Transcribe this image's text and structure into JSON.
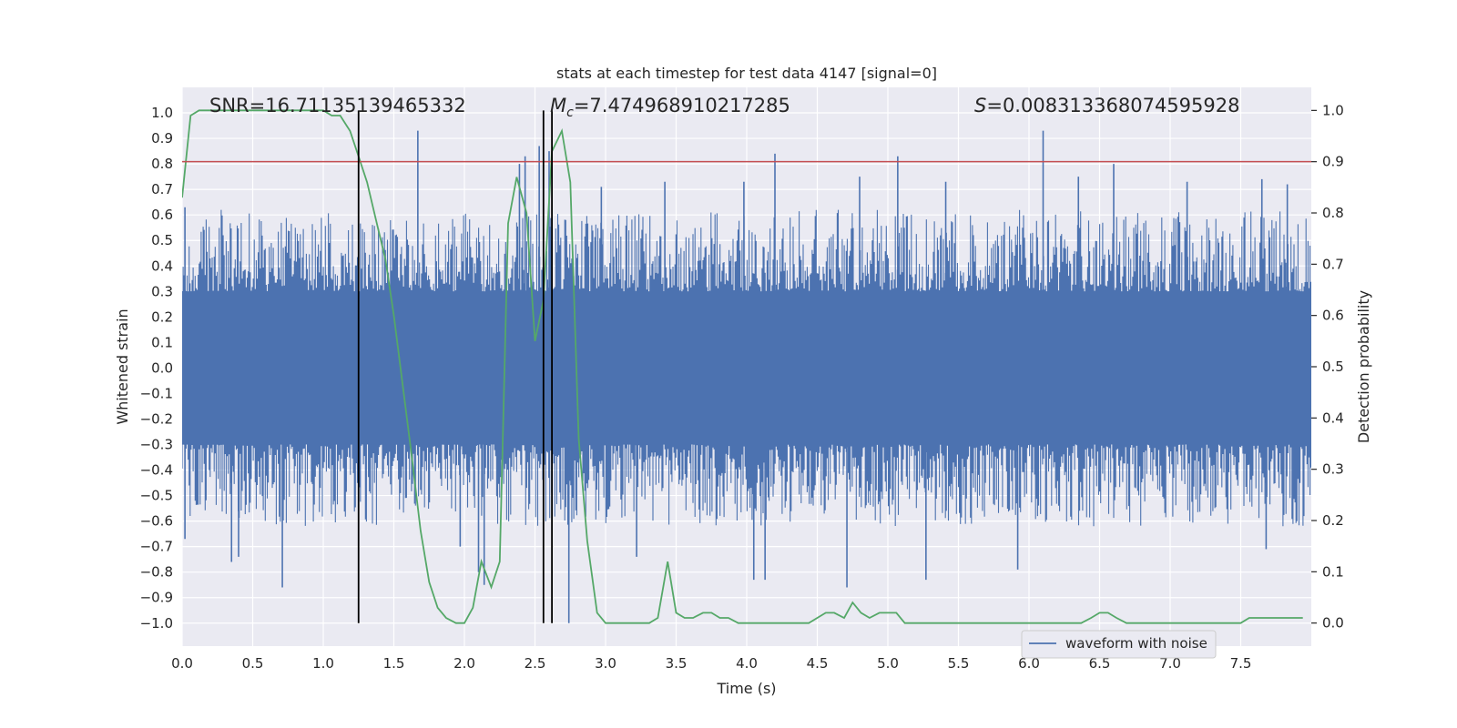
{
  "chart_data": {
    "type": "line",
    "title": "stats at each timestep for test data 4147 [signal=0]",
    "xlabel": "Time (s)",
    "ylabel": "Whitened strain",
    "y2label": "Detection probability",
    "xlim": [
      0.0,
      8.0
    ],
    "ylim": [
      -1.09,
      1.1
    ],
    "y2lim": [
      -0.045,
      1.045
    ],
    "xticks": [
      "0.0",
      "0.5",
      "1.0",
      "1.5",
      "2.0",
      "2.5",
      "3.0",
      "3.5",
      "4.0",
      "4.5",
      "5.0",
      "5.5",
      "6.0",
      "6.5",
      "7.0",
      "7.5"
    ],
    "xtick_values": [
      0.0,
      0.5,
      1.0,
      1.5,
      2.0,
      2.5,
      3.0,
      3.5,
      4.0,
      4.5,
      5.0,
      5.5,
      6.0,
      6.5,
      7.0,
      7.5
    ],
    "yticks": [
      "1.0",
      "0.9",
      "0.8",
      "0.7",
      "0.6",
      "0.5",
      "0.4",
      "0.3",
      "0.2",
      "0.1",
      "0.0",
      "−0.1",
      "−0.2",
      "−0.3",
      "−0.4",
      "−0.5",
      "−0.6",
      "−0.7",
      "−0.8",
      "−0.9",
      "−1.0"
    ],
    "ytick_values": [
      1.0,
      0.9,
      0.8,
      0.7,
      0.6,
      0.5,
      0.4,
      0.3,
      0.2,
      0.1,
      0.0,
      -0.1,
      -0.2,
      -0.3,
      -0.4,
      -0.5,
      -0.6,
      -0.7,
      -0.8,
      -0.9,
      -1.0
    ],
    "y2ticks": [
      "1.0",
      "0.9",
      "0.8",
      "0.7",
      "0.6",
      "0.5",
      "0.4",
      "0.3",
      "0.2",
      "0.1",
      "0.0"
    ],
    "y2tick_values": [
      1.0,
      0.9,
      0.8,
      0.7,
      0.6,
      0.5,
      0.4,
      0.3,
      0.2,
      0.1,
      0.0
    ],
    "grid": true,
    "legend_position": "lower-right",
    "annotations": {
      "snr": "SNR=16.71135139465332",
      "mc_symbol": "M",
      "mc_sub": "c",
      "mc_value": "=7.474968910217285",
      "s_symbol": "S",
      "s_value": "=0.008313368074595928"
    },
    "threshold": {
      "value": 0.9,
      "axis": "y2",
      "color": "#c44e52"
    },
    "vertical_lines": [
      {
        "x": 1.25,
        "y_bottom": -1.0,
        "y2_top": 1.0
      },
      {
        "x": 2.56,
        "y_bottom": -1.0,
        "y2_top": 1.0
      },
      {
        "x": 2.62,
        "y_bottom": -1.0,
        "y2_top": 1.0
      }
    ],
    "series": [
      {
        "name": "waveform with noise",
        "axis": "y",
        "color": "#4c72b0",
        "kind": "dense-noise",
        "core_band": [
          -0.3,
          0.3
        ],
        "typical_peak": 0.62,
        "peaks": [
          {
            "x": 0.02,
            "y": 0.63
          },
          {
            "x": 0.02,
            "y": -0.67
          },
          {
            "x": 0.35,
            "y": -0.76
          },
          {
            "x": 0.4,
            "y": -0.74
          },
          {
            "x": 0.71,
            "y": -0.86
          },
          {
            "x": 1.67,
            "y": 0.93
          },
          {
            "x": 1.97,
            "y": -0.7
          },
          {
            "x": 2.1,
            "y": -0.8
          },
          {
            "x": 2.14,
            "y": -0.85
          },
          {
            "x": 2.39,
            "y": 0.8
          },
          {
            "x": 2.43,
            "y": 0.83
          },
          {
            "x": 2.53,
            "y": 0.87
          },
          {
            "x": 2.6,
            "y": 0.85
          },
          {
            "x": 2.74,
            "y": -1.0
          },
          {
            "x": 2.97,
            "y": 0.71
          },
          {
            "x": 3.22,
            "y": -0.74
          },
          {
            "x": 3.42,
            "y": 0.73
          },
          {
            "x": 3.98,
            "y": 0.73
          },
          {
            "x": 4.05,
            "y": -0.83
          },
          {
            "x": 4.13,
            "y": -0.83
          },
          {
            "x": 4.2,
            "y": 0.84
          },
          {
            "x": 4.71,
            "y": -0.86
          },
          {
            "x": 4.8,
            "y": 0.75
          },
          {
            "x": 5.07,
            "y": 0.83
          },
          {
            "x": 5.27,
            "y": -0.83
          },
          {
            "x": 5.41,
            "y": 0.73
          },
          {
            "x": 5.92,
            "y": -0.79
          },
          {
            "x": 6.1,
            "y": 0.93
          },
          {
            "x": 6.35,
            "y": 0.75
          },
          {
            "x": 6.6,
            "y": 0.8
          },
          {
            "x": 7.12,
            "y": 0.73
          },
          {
            "x": 7.65,
            "y": 0.74
          },
          {
            "x": 7.68,
            "y": -0.71
          },
          {
            "x": 7.83,
            "y": 0.72
          }
        ]
      },
      {
        "name": "",
        "axis": "y2",
        "color": "#55a868",
        "x": [
          0.0,
          0.06,
          0.12,
          0.19,
          0.25,
          0.31,
          0.37,
          0.44,
          0.5,
          0.56,
          0.62,
          0.69,
          0.75,
          0.81,
          0.87,
          0.94,
          1.0,
          1.06,
          1.12,
          1.19,
          1.25,
          1.31,
          1.37,
          1.44,
          1.5,
          1.56,
          1.62,
          1.69,
          1.75,
          1.81,
          1.87,
          1.94,
          2.0,
          2.06,
          2.12,
          2.19,
          2.25,
          2.31,
          2.37,
          2.44,
          2.5,
          2.56,
          2.62,
          2.69,
          2.75,
          2.81,
          2.87,
          2.94,
          3.0,
          3.06,
          3.12,
          3.19,
          3.25,
          3.31,
          3.37,
          3.44,
          3.5,
          3.56,
          3.62,
          3.69,
          3.75,
          3.81,
          3.87,
          3.94,
          4.0,
          4.06,
          4.12,
          4.19,
          4.25,
          4.31,
          4.37,
          4.44,
          4.5,
          4.56,
          4.62,
          4.69,
          4.75,
          4.81,
          4.87,
          4.94,
          5.0,
          5.06,
          5.12,
          5.19,
          5.25,
          5.31,
          5.37,
          5.44,
          5.5,
          5.56,
          5.62,
          5.69,
          5.75,
          5.81,
          5.87,
          5.94,
          6.0,
          6.06,
          6.12,
          6.19,
          6.25,
          6.31,
          6.37,
          6.44,
          6.5,
          6.56,
          6.62,
          6.69,
          6.75,
          6.81,
          6.87,
          6.94,
          7.0,
          7.06,
          7.12,
          7.19,
          7.25,
          7.31,
          7.37,
          7.44,
          7.5,
          7.56,
          7.62,
          7.69,
          7.75,
          7.81,
          7.87,
          7.94
        ],
        "values": [
          0.83,
          0.99,
          1.0,
          1.0,
          1.0,
          1.0,
          1.0,
          1.0,
          1.0,
          1.0,
          1.0,
          1.0,
          1.0,
          1.0,
          1.0,
          1.0,
          1.0,
          0.99,
          0.99,
          0.96,
          0.91,
          0.86,
          0.79,
          0.71,
          0.6,
          0.47,
          0.34,
          0.18,
          0.08,
          0.03,
          0.01,
          0.0,
          0.0,
          0.03,
          0.12,
          0.07,
          0.12,
          0.78,
          0.87,
          0.8,
          0.55,
          0.63,
          0.92,
          0.96,
          0.86,
          0.36,
          0.16,
          0.02,
          0.0,
          0.0,
          0.0,
          0.0,
          0.0,
          0.0,
          0.01,
          0.12,
          0.02,
          0.01,
          0.01,
          0.02,
          0.02,
          0.01,
          0.01,
          0.0,
          0.0,
          0.0,
          0.0,
          0.0,
          0.0,
          0.0,
          0.0,
          0.0,
          0.01,
          0.02,
          0.02,
          0.01,
          0.04,
          0.02,
          0.01,
          0.02,
          0.02,
          0.02,
          0.0,
          0.0,
          0.0,
          0.0,
          0.0,
          0.0,
          0.0,
          0.0,
          0.0,
          0.0,
          0.0,
          0.0,
          0.0,
          0.0,
          0.0,
          0.0,
          0.0,
          0.0,
          0.0,
          0.0,
          0.0,
          0.01,
          0.02,
          0.02,
          0.01,
          0.0,
          0.0,
          0.0,
          0.0,
          0.0,
          0.0,
          0.0,
          0.0,
          0.0,
          0.0,
          0.0,
          0.0,
          0.0,
          0.0,
          0.01,
          0.01,
          0.01,
          0.01,
          0.01,
          0.01,
          0.01
        ]
      }
    ]
  }
}
